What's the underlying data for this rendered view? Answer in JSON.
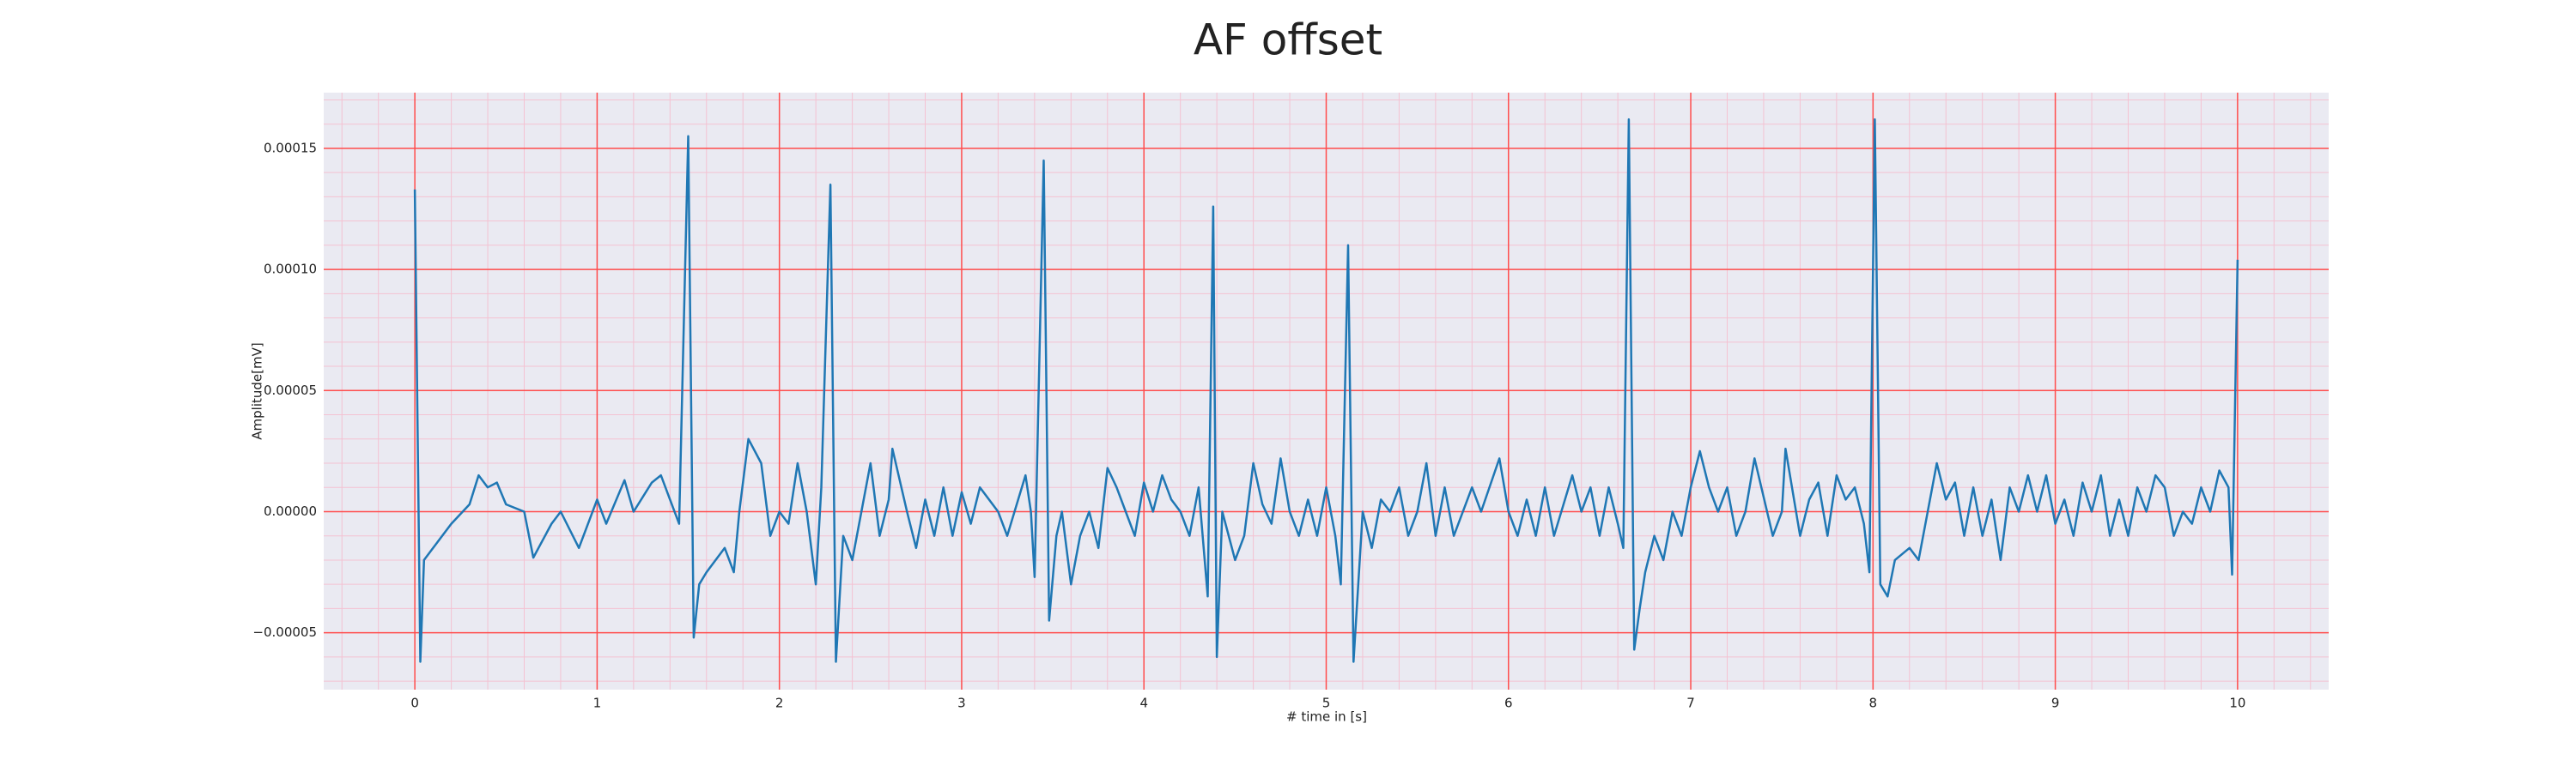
{
  "chart_data": {
    "type": "line",
    "title": "AF offset",
    "xlabel": "# time in [s]",
    "ylabel": "Amplitude[mV]",
    "xlim": [
      -0.5,
      10.5
    ],
    "xticks": [
      0,
      1,
      2,
      3,
      4,
      5,
      6,
      7,
      8,
      9,
      10
    ],
    "ylim": [
      -7.35e-05,
      0.000173
    ],
    "yticks": [
      {
        "value": -5e-05,
        "label": "−0.00005"
      },
      {
        "value": 0,
        "label": "0.00000"
      },
      {
        "value": 5e-05,
        "label": "0.00005"
      },
      {
        "value": 0.0001,
        "label": "0.00010"
      },
      {
        "value": 0.00015,
        "label": "0.00015"
      }
    ],
    "grid": true,
    "minor_grid": true,
    "grid_color": "#ff4d4d",
    "minor_grid_color": "#f4c2d2",
    "background": "#eaeaf2",
    "x": [
      0,
      0.03,
      0.05,
      0.1,
      0.2,
      0.3,
      0.35,
      0.4,
      0.45,
      0.5,
      0.6,
      0.65,
      0.75,
      0.8,
      0.9,
      1.0,
      1.05,
      1.15,
      1.2,
      1.3,
      1.35,
      1.4,
      1.45,
      1.5,
      1.53,
      1.56,
      1.6,
      1.7,
      1.75,
      1.78,
      1.83,
      1.9,
      1.95,
      2.0,
      2.05,
      2.1,
      2.15,
      2.2,
      2.23,
      2.28,
      2.31,
      2.35,
      2.4,
      2.45,
      2.5,
      2.55,
      2.6,
      2.62,
      2.7,
      2.75,
      2.8,
      2.85,
      2.9,
      2.95,
      3.0,
      3.05,
      3.1,
      3.2,
      3.25,
      3.35,
      3.38,
      3.4,
      3.45,
      3.48,
      3.52,
      3.55,
      3.6,
      3.65,
      3.7,
      3.75,
      3.8,
      3.85,
      3.9,
      3.95,
      4.0,
      4.05,
      4.1,
      4.15,
      4.2,
      4.25,
      4.3,
      4.35,
      4.38,
      4.4,
      4.43,
      4.5,
      4.55,
      4.6,
      4.65,
      4.7,
      4.75,
      4.8,
      4.85,
      4.9,
      4.95,
      5.0,
      5.05,
      5.08,
      5.12,
      5.15,
      5.2,
      5.25,
      5.3,
      5.35,
      5.4,
      5.45,
      5.5,
      5.55,
      5.6,
      5.65,
      5.7,
      5.8,
      5.85,
      5.95,
      6.0,
      6.05,
      6.1,
      6.15,
      6.2,
      6.25,
      6.35,
      6.4,
      6.45,
      6.5,
      6.55,
      6.6,
      6.63,
      6.66,
      6.69,
      6.72,
      6.75,
      6.8,
      6.85,
      6.9,
      6.95,
      7.0,
      7.05,
      7.1,
      7.15,
      7.2,
      7.25,
      7.3,
      7.35,
      7.45,
      7.5,
      7.52,
      7.6,
      7.65,
      7.7,
      7.75,
      7.8,
      7.85,
      7.9,
      7.95,
      7.98,
      8.01,
      8.04,
      8.08,
      8.12,
      8.2,
      8.25,
      8.3,
      8.35,
      8.4,
      8.45,
      8.5,
      8.55,
      8.6,
      8.65,
      8.7,
      8.75,
      8.8,
      8.85,
      8.9,
      8.95,
      9.0,
      9.05,
      9.1,
      9.15,
      9.2,
      9.25,
      9.3,
      9.35,
      9.4,
      9.45,
      9.5,
      9.55,
      9.6,
      9.65,
      9.7,
      9.75,
      9.8,
      9.85,
      9.9,
      9.95,
      9.97,
      10.0
    ],
    "series": [
      {
        "color": "#1f77b4",
        "values": [
          0.000133,
          -6.2e-05,
          -2e-05,
          -1.5e-05,
          -5e-06,
          3e-06,
          1.5e-05,
          1e-05,
          1.2e-05,
          3e-06,
          0,
          -1.9e-05,
          -5e-06,
          0,
          -1.5e-05,
          5e-06,
          -5e-06,
          1.3e-05,
          0,
          1.2e-05,
          1.5e-05,
          5e-06,
          -5e-06,
          0.000155,
          -5.2e-05,
          -3e-05,
          -2.5e-05,
          -1.5e-05,
          -2.5e-05,
          0,
          3e-05,
          2e-05,
          -1e-05,
          0,
          -5e-06,
          2e-05,
          0,
          -3e-05,
          1e-05,
          0.000135,
          -6.2e-05,
          -1e-05,
          -2e-05,
          0,
          2e-05,
          -1e-05,
          5e-06,
          2.6e-05,
          0,
          -1.5e-05,
          5e-06,
          -1e-05,
          1e-05,
          -1e-05,
          8e-06,
          -5e-06,
          1e-05,
          0,
          -1e-05,
          1.5e-05,
          0,
          -2.7e-05,
          0.000145,
          -4.5e-05,
          -1e-05,
          0,
          -3e-05,
          -1e-05,
          0,
          -1.5e-05,
          1.8e-05,
          1e-05,
          0,
          -1e-05,
          1.2e-05,
          0,
          1.5e-05,
          5e-06,
          0,
          -1e-05,
          1e-05,
          -3.5e-05,
          0.000126,
          -6e-05,
          0,
          -2e-05,
          -1e-05,
          2e-05,
          3e-06,
          -5e-06,
          2.2e-05,
          0,
          -1e-05,
          5e-06,
          -1e-05,
          1e-05,
          -1e-05,
          -3e-05,
          0.00011,
          -6.2e-05,
          0,
          -1.5e-05,
          5e-06,
          0,
          1e-05,
          -1e-05,
          0,
          2e-05,
          -1e-05,
          1e-05,
          -1e-05,
          1e-05,
          0,
          2.2e-05,
          0,
          -1e-05,
          5e-06,
          -1e-05,
          1e-05,
          -1e-05,
          1.5e-05,
          0,
          1e-05,
          -1e-05,
          1e-05,
          -5e-06,
          -1.5e-05,
          0.000162,
          -5.7e-05,
          -4e-05,
          -2.5e-05,
          -1e-05,
          -2e-05,
          0,
          -1e-05,
          1e-05,
          2.5e-05,
          1e-05,
          0,
          1e-05,
          -1e-05,
          0,
          2.2e-05,
          -1e-05,
          0,
          2.6e-05,
          -1e-05,
          5e-06,
          1.2e-05,
          -1e-05,
          1.5e-05,
          5e-06,
          1e-05,
          -5e-06,
          -2.5e-05,
          0.000162,
          -3e-05,
          -3.5e-05,
          -2e-05,
          -1.5e-05,
          -2e-05,
          0,
          2e-05,
          5e-06,
          1.2e-05,
          -1e-05,
          1e-05,
          -1e-05,
          5e-06,
          -2e-05,
          1e-05,
          0,
          1.5e-05,
          0,
          1.5e-05,
          -5e-06,
          5e-06,
          -1e-05,
          1.2e-05,
          0,
          1.5e-05,
          -1e-05,
          5e-06,
          -1e-05,
          1e-05,
          0,
          1.5e-05,
          1e-05,
          -1e-05,
          0,
          -5e-06,
          1e-05,
          0,
          1.7e-05,
          1e-05,
          -2.6e-05,
          0.000104
        ]
      }
    ]
  }
}
